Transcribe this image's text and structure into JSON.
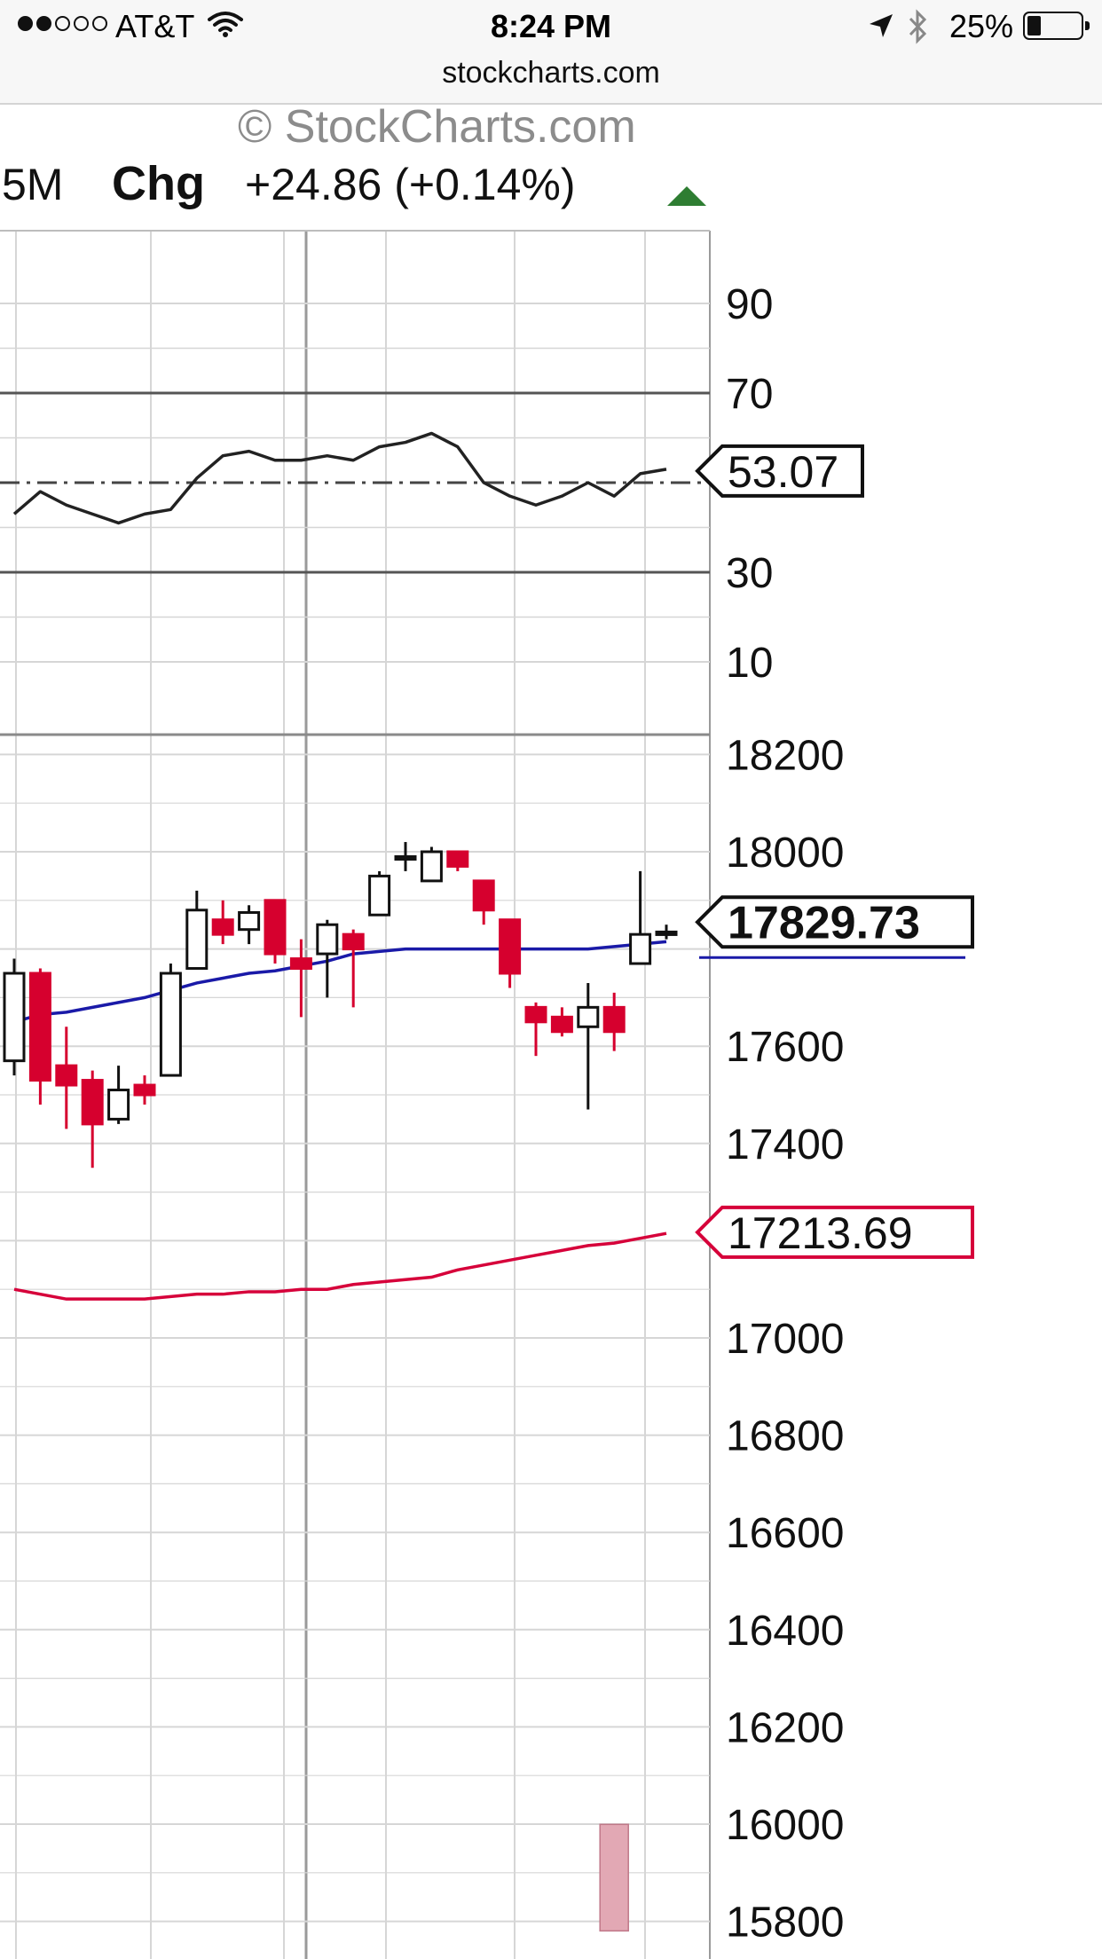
{
  "status_bar": {
    "signal_dots_filled": 2,
    "signal_dots_total": 5,
    "carrier": "AT&T",
    "time": "8:24 PM",
    "battery": "25%",
    "battery_level": 0.25,
    "icons": [
      "wifi-icon",
      "location-arrow-icon",
      "bluetooth-icon",
      "battery-icon"
    ]
  },
  "browser": {
    "url": "stockcharts.com"
  },
  "chart_header": {
    "brand": "© StockCharts.com",
    "prefix": "5M",
    "chg_label": "Chg",
    "chg_value": "+24.86 (+0.14%)",
    "chg_direction": "up"
  },
  "colors": {
    "up_candle": "#ffffff",
    "down_candle": "#d6002e",
    "ma_short": "#1a1aa8",
    "ma_long": "#d6003a",
    "arrow_up": "#2e7d32",
    "grid": "#d6d6d6"
  },
  "chart_data": [
    {
      "type": "line",
      "indicator": "RSI",
      "ylim": [
        0,
        100
      ],
      "yticks": [
        "90",
        "70",
        "30",
        "10"
      ],
      "reference_lines": [
        70,
        50,
        30
      ],
      "last_value_label": "53.07",
      "values": [
        43,
        48,
        45,
        43,
        41,
        43,
        44,
        51,
        56,
        57,
        55,
        55,
        56,
        55,
        58,
        59,
        61,
        58,
        50,
        47,
        45,
        47,
        50,
        47,
        52,
        53
      ]
    },
    {
      "type": "candlestick",
      "ylim": [
        15800,
        18300
      ],
      "yticks": [
        "18200",
        "18000",
        "17600",
        "17400",
        "17000",
        "16800",
        "16600",
        "16400",
        "16200",
        "16000",
        "15800"
      ],
      "last_price_label": "17829.73",
      "candles": [
        {
          "o": 17570,
          "h": 17780,
          "l": 17540,
          "c": 17750
        },
        {
          "o": 17750,
          "h": 17760,
          "l": 17480,
          "c": 17530
        },
        {
          "o": 17560,
          "h": 17640,
          "l": 17430,
          "c": 17520
        },
        {
          "o": 17530,
          "h": 17550,
          "l": 17350,
          "c": 17440
        },
        {
          "o": 17450,
          "h": 17560,
          "l": 17440,
          "c": 17510
        },
        {
          "o": 17520,
          "h": 17540,
          "l": 17480,
          "c": 17500
        },
        {
          "o": 17540,
          "h": 17770,
          "l": 17540,
          "c": 17750
        },
        {
          "o": 17760,
          "h": 17920,
          "l": 17760,
          "c": 17880
        },
        {
          "o": 17860,
          "h": 17900,
          "l": 17810,
          "c": 17830
        },
        {
          "o": 17840,
          "h": 17890,
          "l": 17810,
          "c": 17875
        },
        {
          "o": 17900,
          "h": 17900,
          "l": 17770,
          "c": 17790
        },
        {
          "o": 17780,
          "h": 17820,
          "l": 17660,
          "c": 17760
        },
        {
          "o": 17790,
          "h": 17860,
          "l": 17700,
          "c": 17850
        },
        {
          "o": 17830,
          "h": 17840,
          "l": 17680,
          "c": 17800
        },
        {
          "o": 17870,
          "h": 17960,
          "l": 17870,
          "c": 17950
        },
        {
          "o": 17990,
          "h": 18020,
          "l": 17960,
          "c": 17990
        },
        {
          "o": 17940,
          "h": 18010,
          "l": 17940,
          "c": 18000
        },
        {
          "o": 18000,
          "h": 18000,
          "l": 17960,
          "c": 17970
        },
        {
          "o": 17940,
          "h": 17940,
          "l": 17850,
          "c": 17880
        },
        {
          "o": 17860,
          "h": 17860,
          "l": 17720,
          "c": 17750
        },
        {
          "o": 17680,
          "h": 17690,
          "l": 17580,
          "c": 17650
        },
        {
          "o": 17660,
          "h": 17680,
          "l": 17620,
          "c": 17630
        },
        {
          "o": 17640,
          "h": 17730,
          "l": 17470,
          "c": 17680
        },
        {
          "o": 17680,
          "h": 17710,
          "l": 17590,
          "c": 17630
        },
        {
          "o": 17770,
          "h": 17960,
          "l": 17770,
          "c": 17830
        },
        {
          "o": 17830,
          "h": 17850,
          "l": 17820,
          "c": 17835
        }
      ],
      "series": [
        {
          "name": "",
          "color": "#1a1aa8",
          "last_label": "",
          "values": [
            17650,
            17665,
            17670,
            17680,
            17690,
            17700,
            17715,
            17730,
            17740,
            17750,
            17755,
            17765,
            17775,
            17790,
            17795,
            17800,
            17800,
            17800,
            17800,
            17800,
            17800,
            17800,
            17800,
            17805,
            17810,
            17815
          ]
        },
        {
          "name": "",
          "color": "#d6003a",
          "last_label": "17213.69",
          "values": [
            17100,
            17090,
            17080,
            17080,
            17080,
            17080,
            17085,
            17090,
            17090,
            17095,
            17095,
            17100,
            17100,
            17110,
            17115,
            17120,
            17125,
            17140,
            17150,
            17160,
            17170,
            17180,
            17190,
            17195,
            17205,
            17215
          ]
        }
      ],
      "volume_bars": [
        {
          "index": 23,
          "value": 15890
        }
      ]
    }
  ]
}
